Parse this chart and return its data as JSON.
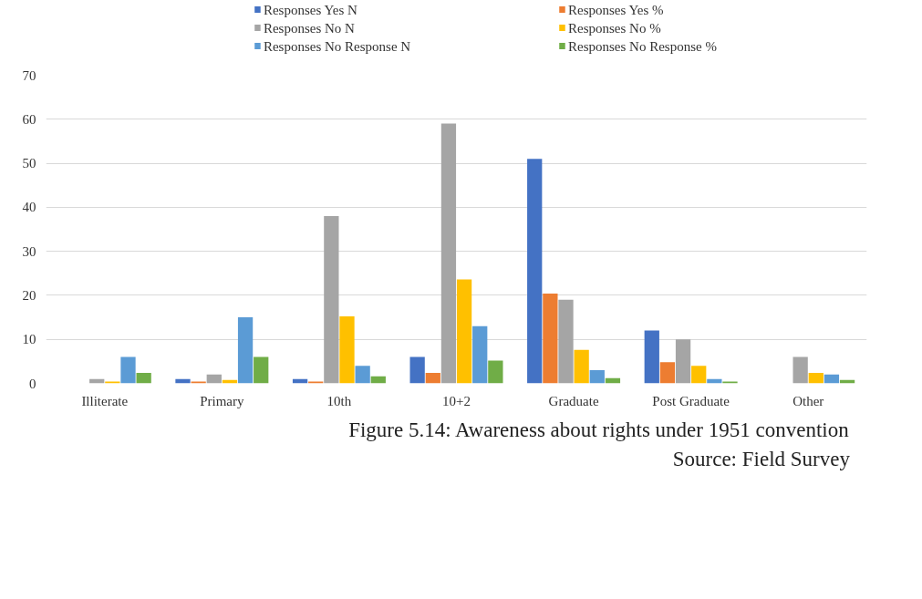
{
  "chart_data": {
    "type": "bar",
    "categories": [
      "Illiterate",
      "Primary",
      "10th",
      "10+2",
      "Graduate",
      "Post Graduate",
      "Other"
    ],
    "series": [
      {
        "name": "Responses  Yes N",
        "color": "#4472c4",
        "values": [
          0,
          1,
          1,
          6,
          51,
          12,
          0
        ]
      },
      {
        "name": "Responses  Yes %",
        "color": "#ed7d31",
        "values": [
          0,
          0.4,
          0.4,
          2.4,
          20.4,
          4.8,
          0
        ]
      },
      {
        "name": "Responses  No N",
        "color": "#a5a5a5",
        "values": [
          1,
          2,
          38,
          59,
          19,
          10,
          6
        ]
      },
      {
        "name": "Responses  No %",
        "color": "#ffc000",
        "values": [
          0.4,
          0.8,
          15.2,
          23.6,
          7.6,
          4,
          2.4
        ]
      },
      {
        "name": "Responses  No Response N",
        "color": "#5b9bd5",
        "values": [
          6,
          15,
          4,
          13,
          3,
          1,
          2
        ]
      },
      {
        "name": "Responses  No Response %",
        "color": "#70ad47",
        "values": [
          2.4,
          6,
          1.6,
          5.2,
          1.2,
          0.4,
          0.8
        ]
      }
    ],
    "ylim": [
      0,
      70
    ],
    "yticks": [
      0,
      10,
      20,
      30,
      40,
      50,
      60,
      70
    ],
    "grid": "y",
    "legend": "top",
    "annotations": [
      "Figure 5.14: Awareness about rights under 1951 convention",
      "Source: Field Survey"
    ]
  }
}
